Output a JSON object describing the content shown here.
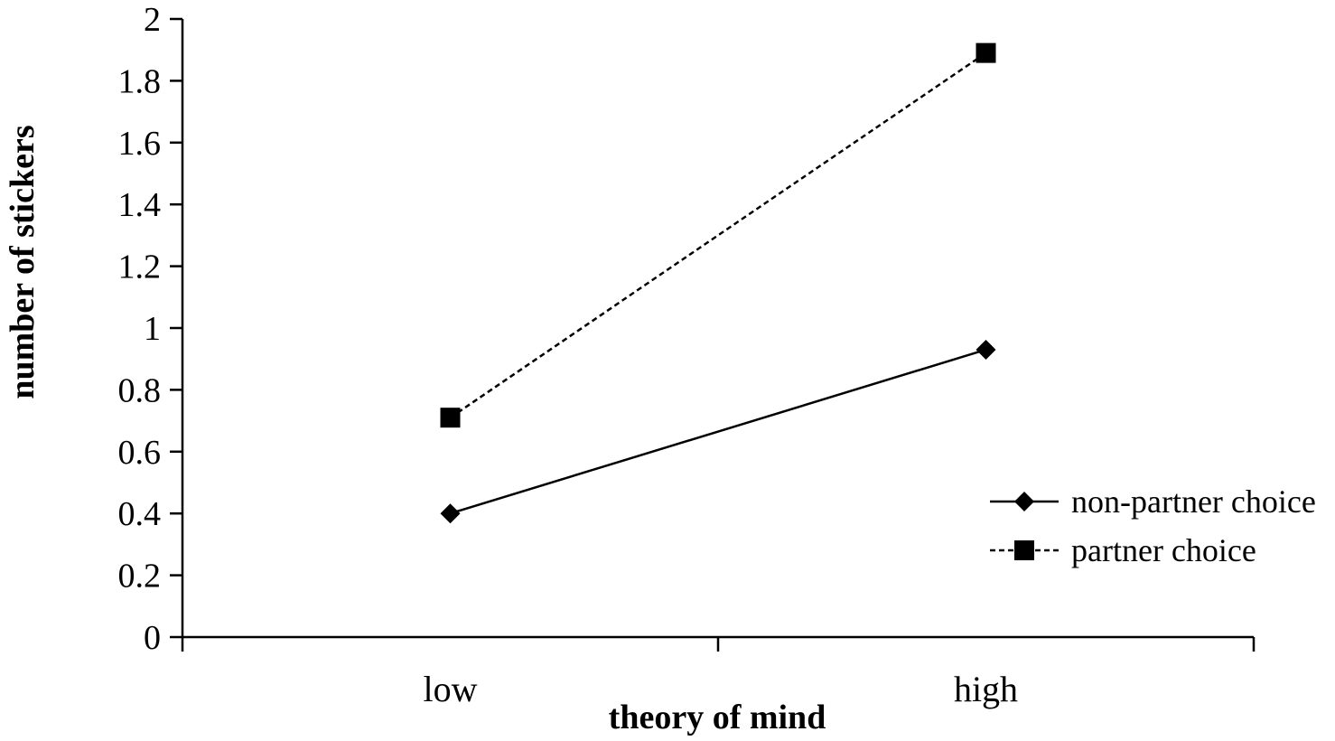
{
  "chart_data": {
    "type": "line",
    "title": "",
    "xlabel": "theory of mind",
    "ylabel": "number of stickers",
    "categories": [
      "low",
      "high"
    ],
    "ylim": [
      0,
      2
    ],
    "yticks": [
      "0",
      "0.2",
      "0.4",
      "0.6",
      "0.8",
      "1",
      "1.2",
      "1.4",
      "1.6",
      "1.8",
      "2"
    ],
    "grid": false,
    "legend_position": "right",
    "series": [
      {
        "name": "non-partner choice",
        "values": [
          0.4,
          0.93
        ],
        "marker": "diamond",
        "line_style": "solid",
        "color": "#000000"
      },
      {
        "name": "partner choice",
        "values": [
          0.71,
          1.89
        ],
        "marker": "square",
        "line_style": "dashed",
        "color": "#000000"
      }
    ]
  }
}
